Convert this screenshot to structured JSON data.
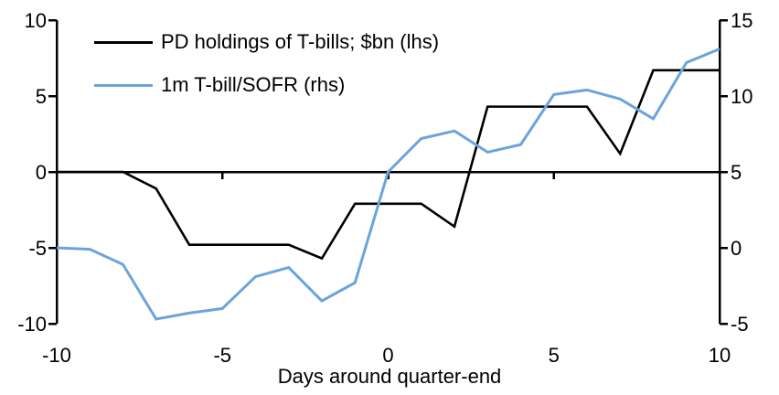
{
  "window": {
    "background": "#FFFFFF"
  },
  "chart_data": {
    "type": "line",
    "title": "",
    "xlabel": "Days around quarter-end",
    "x": [
      -10,
      -9,
      -8,
      -7,
      -6,
      -5,
      -4,
      -3,
      -2,
      -1,
      0,
      1,
      2,
      3,
      4,
      5,
      6,
      7,
      8,
      9,
      10
    ],
    "series": [
      {
        "name": "PD holdings of T-bills; $bn (lhs)",
        "axis": "left",
        "color": "#000000",
        "line_width": 2.6,
        "values": [
          0,
          0,
          0,
          -1.1,
          -4.8,
          -4.8,
          -4.8,
          -4.8,
          -5.7,
          -2.1,
          -2.1,
          -2.1,
          -3.6,
          4.3,
          4.3,
          4.3,
          4.3,
          1.2,
          6.7,
          6.7,
          6.7
        ]
      },
      {
        "name": "1m T-bill/SOFR (rhs)",
        "axis": "right",
        "color": "#6CA4DA",
        "line_width": 3,
        "values": [
          0.0,
          -0.1,
          -1.1,
          -4.7,
          -4.3,
          -4.0,
          -1.9,
          -1.3,
          -3.5,
          -2.3,
          5.0,
          7.2,
          7.7,
          6.3,
          6.8,
          10.1,
          10.4,
          9.8,
          8.5,
          12.2,
          13.1
        ]
      }
    ],
    "left_axis": {
      "min": -10,
      "max": 10,
      "ticks": [
        10,
        5,
        0,
        -5,
        -10
      ]
    },
    "right_axis": {
      "min": -5,
      "max": 15,
      "ticks": [
        15,
        10,
        5,
        0,
        -5
      ]
    },
    "x_axis": {
      "ticks": [
        -10,
        -5,
        0,
        5,
        10
      ],
      "labeled_inner_ticks": [
        -5,
        0,
        5
      ]
    },
    "axis_color": "#000000",
    "grid": false,
    "legend_position": "top-left"
  }
}
